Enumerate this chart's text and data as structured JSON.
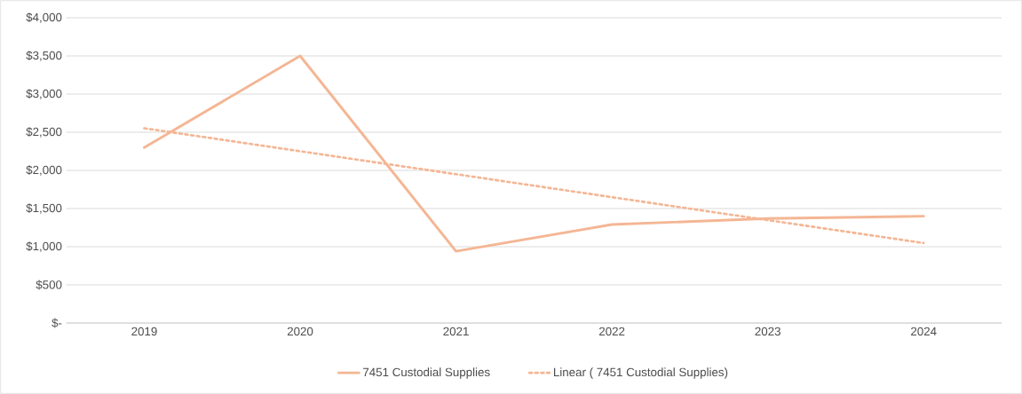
{
  "chart_data": {
    "type": "line",
    "categories": [
      "2019",
      "2020",
      "2021",
      "2022",
      "2023",
      "2024"
    ],
    "series": [
      {
        "name": "7451 Custodial Supplies",
        "color": "#f4b694",
        "values": [
          2300,
          3500,
          940,
          1290,
          1370,
          1400
        ],
        "line_style": "solid"
      },
      {
        "name": "Linear ( 7451 Custodial Supplies)",
        "color": "#f4b694",
        "values": [
          2552,
          2251,
          1950,
          1649,
          1348,
          1048
        ],
        "line_style": "dotted"
      }
    ],
    "ylim": [
      0,
      4000
    ],
    "yticks": [
      {
        "value": 0,
        "label": "$-"
      },
      {
        "value": 500,
        "label": "$500"
      },
      {
        "value": 1000,
        "label": "$1,000"
      },
      {
        "value": 1500,
        "label": "$1,500"
      },
      {
        "value": 2000,
        "label": "$2,000"
      },
      {
        "value": 2500,
        "label": "$2,500"
      },
      {
        "value": 3000,
        "label": "$3,000"
      },
      {
        "value": 3500,
        "label": "$3,500"
      },
      {
        "value": 4000,
        "label": "$4,000"
      }
    ],
    "grid": "y",
    "legend": "bottom",
    "marker": "none"
  }
}
